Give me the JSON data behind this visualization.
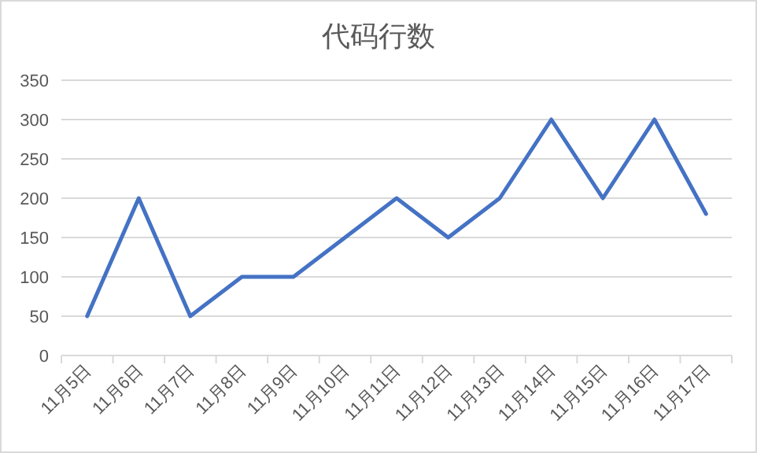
{
  "chart_data": {
    "type": "line",
    "title": "代码行数",
    "categories": [
      "11月5日",
      "11月6日",
      "11月7日",
      "11月8日",
      "11月9日",
      "11月10日",
      "11月11日",
      "11月12日",
      "11月13日",
      "11月14日",
      "11月15日",
      "11月16日",
      "11月17日"
    ],
    "series": [
      {
        "color": "#4472c4",
        "values": [
          50,
          200,
          50,
          100,
          100,
          150,
          200,
          150,
          200,
          300,
          200,
          300,
          180
        ]
      }
    ],
    "ylim": [
      0,
      350
    ],
    "yticks": [
      0,
      50,
      100,
      150,
      200,
      250,
      300,
      350
    ],
    "grid": "y",
    "marker": "none",
    "line_style": "solid"
  }
}
